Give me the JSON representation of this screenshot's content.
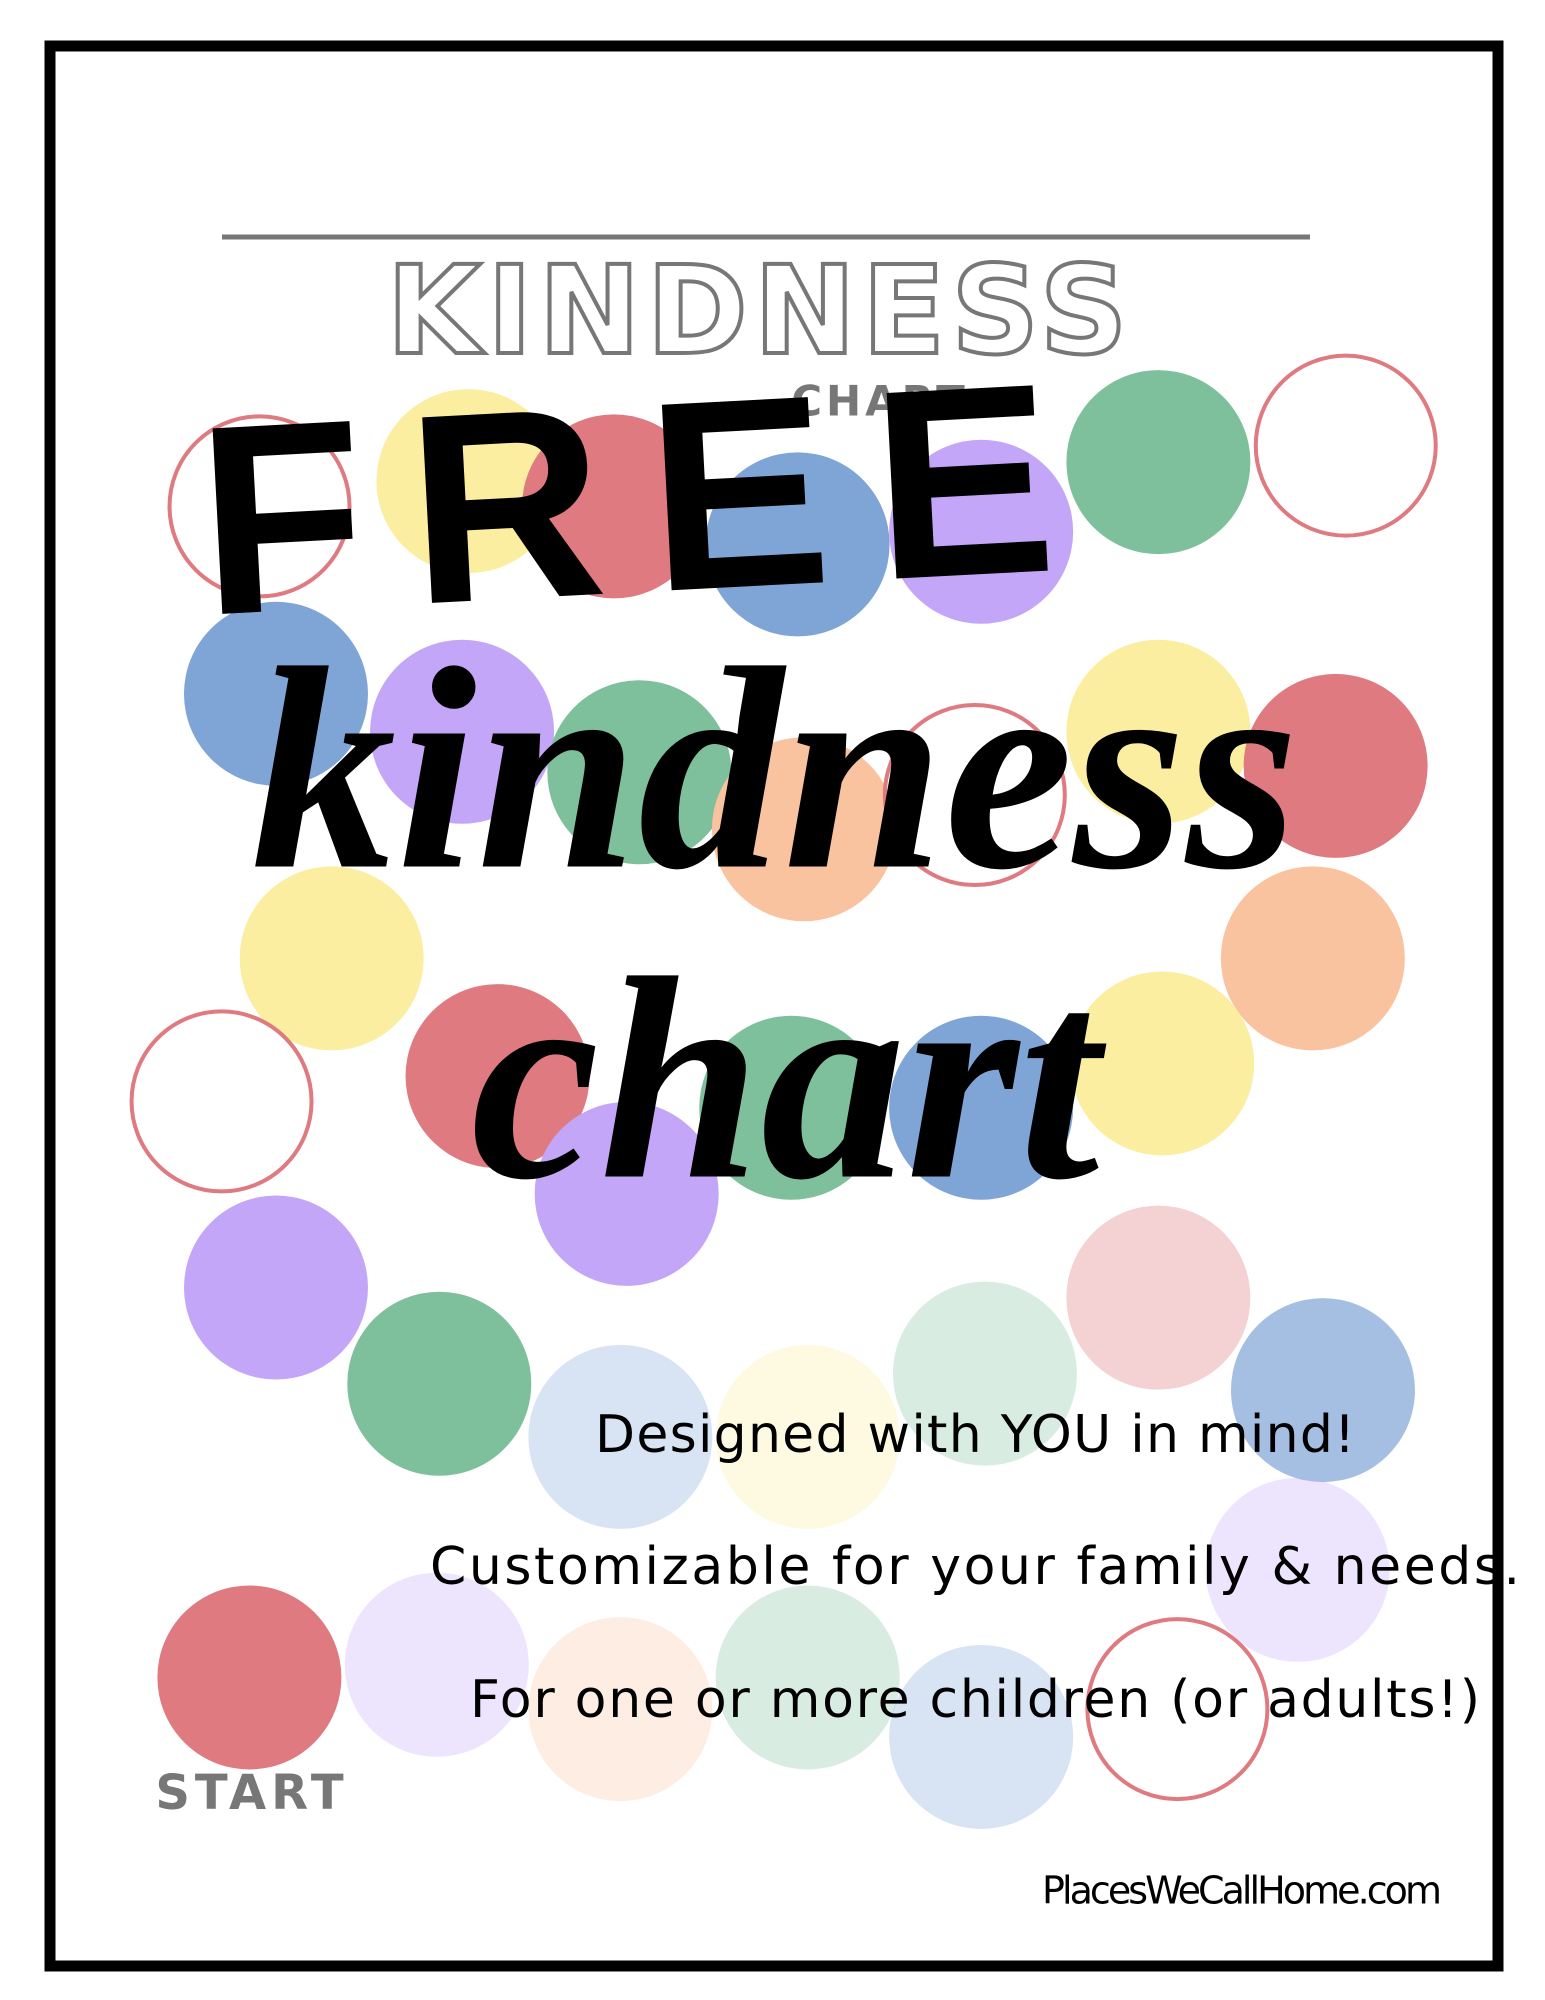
{
  "header": {
    "title": "KINDNESS",
    "subtitle": "CHART"
  },
  "headline": {
    "badge": "FREE",
    "line1": "kindness",
    "line2": "chart"
  },
  "taglines": [
    "Designed with YOU in mind!",
    "Customizable for your family & needs.",
    "For one or more children (or adults!)"
  ],
  "start_label": "START",
  "footer": {
    "website": "PlacesWeCallHome.com"
  }
}
